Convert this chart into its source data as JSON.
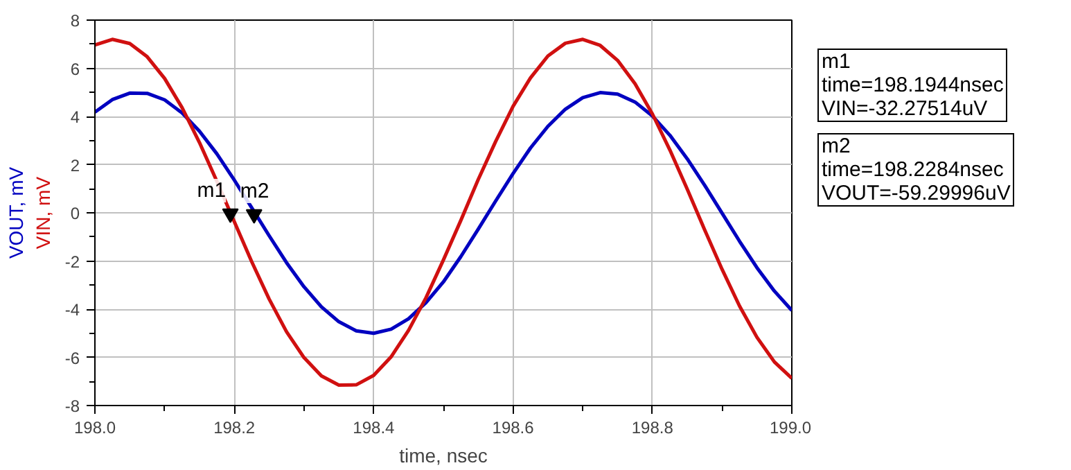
{
  "chart_data": {
    "type": "line",
    "xlabel": "time, nsec",
    "x": [
      198.0,
      198.025,
      198.05,
      198.075,
      198.1,
      198.125,
      198.15,
      198.175,
      198.2,
      198.225,
      198.25,
      198.275,
      198.3,
      198.325,
      198.35,
      198.375,
      198.4,
      198.425,
      198.45,
      198.475,
      198.5,
      198.525,
      198.55,
      198.575,
      198.6,
      198.625,
      198.65,
      198.675,
      198.7,
      198.725,
      198.75,
      198.775,
      198.8,
      198.825,
      198.85,
      198.875,
      198.9,
      198.925,
      198.95,
      198.975,
      199.0
    ],
    "series": [
      {
        "name": "VOUT, mV",
        "color": "#0000c0",
        "values": [
          4.18,
          4.7,
          4.97,
          4.96,
          4.69,
          4.15,
          3.39,
          2.45,
          1.36,
          0.21,
          -0.95,
          -2.07,
          -3.07,
          -3.9,
          -4.52,
          -4.9,
          -5.0,
          -4.83,
          -4.4,
          -3.73,
          -2.87,
          -1.82,
          -0.68,
          0.49,
          1.63,
          2.69,
          3.59,
          4.3,
          4.78,
          4.99,
          4.93,
          4.6,
          4.02,
          3.22,
          2.24,
          1.14,
          -0.02,
          -1.18,
          -2.28,
          -3.25,
          -4.05
        ]
      },
      {
        "name": "VIN, mV",
        "color": "#d01010",
        "values": [
          6.97,
          7.2,
          7.03,
          6.48,
          5.58,
          4.37,
          2.92,
          1.31,
          -0.37,
          -2.03,
          -3.58,
          -4.94,
          -6.01,
          -6.77,
          -7.15,
          -7.14,
          -6.75,
          -5.98,
          -4.88,
          -3.53,
          -1.96,
          -0.32,
          1.38,
          2.96,
          4.42,
          5.6,
          6.51,
          7.04,
          7.2,
          6.95,
          6.33,
          5.36,
          4.1,
          2.61,
          0.98,
          -0.71,
          -2.35,
          -3.87,
          -5.17,
          -6.19,
          -6.87
        ]
      }
    ],
    "xlim": [
      198.0,
      199.0
    ],
    "xticks": [
      {
        "value": 198.0,
        "label": "198.0"
      },
      198.2,
      198.4,
      198.6,
      198.8,
      {
        "value": 199.0,
        "label": "199.0"
      }
    ],
    "ylim": [
      -8,
      8
    ],
    "yticks": [
      -8,
      -6,
      -4,
      -2,
      0,
      2,
      4,
      6,
      8
    ],
    "grid": true,
    "legend": "left",
    "marker": "none",
    "line_style": "solid",
    "annotations": [
      {
        "text": "m1",
        "x": 198.1944,
        "y": -0.03227514
      },
      {
        "text": "m2",
        "x": 198.2284,
        "y": -0.05929996
      },
      "m1\ntime=198.1944nsec\nVIN=-32.27514uV",
      "m2\ntime=198.2284nsec\nVOUT=-59.29996uV"
    ]
  }
}
